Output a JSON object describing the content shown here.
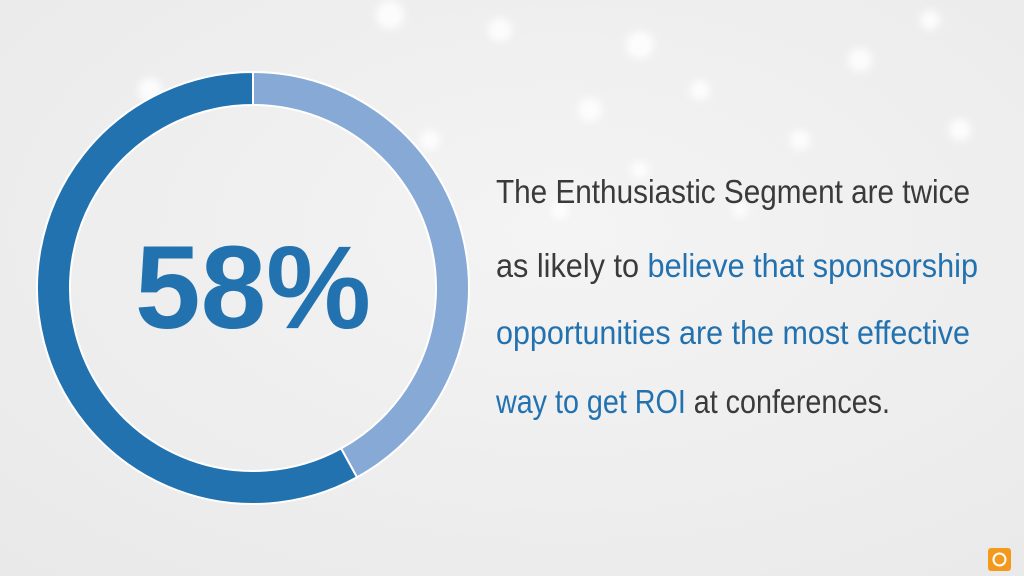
{
  "chart_data": {
    "type": "donut",
    "values": [
      58,
      42
    ],
    "colors": [
      "#2372b0",
      "#86a9d6"
    ],
    "center_label": "58%",
    "text_lines": [
      [
        {
          "text": "The Enthusiastic Segment are twice",
          "highlight": false
        }
      ],
      [
        {
          "text": "as likely to ",
          "highlight": false
        },
        {
          "text": "believe that sponsorship",
          "highlight": true
        }
      ],
      [
        {
          "text": "opportunities are the most effective",
          "highlight": true
        }
      ],
      [
        {
          "text": "way to get ROI",
          "highlight": true
        },
        {
          "text": " at conferences.",
          "highlight": false
        }
      ]
    ],
    "text_color": "#3a3a3a",
    "highlight_color": "#2372b0"
  }
}
